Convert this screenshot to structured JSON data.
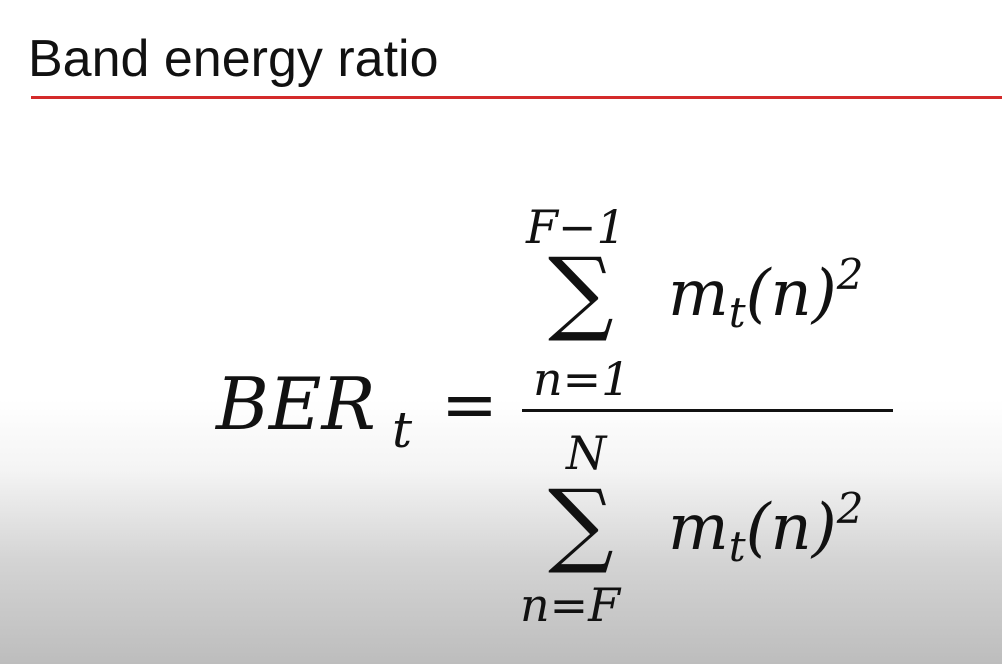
{
  "slide": {
    "title": "Band energy ratio"
  },
  "formula": {
    "lhs": "BER",
    "lhs_subscript": "t",
    "equals": "=",
    "numerator": {
      "operator": "∑",
      "upper_limit": "F−1",
      "lower_limit": "n=1",
      "term_base": "m",
      "term_subscript": "t",
      "term_argument": "(n)",
      "term_exponent": "2"
    },
    "denominator": {
      "operator": "∑",
      "upper_limit": "N",
      "lower_limit": "n=F",
      "term_base": "m",
      "term_subscript": "t",
      "term_argument": "(n)",
      "term_exponent": "2"
    }
  },
  "colors": {
    "title_rule": "#d42a2a",
    "text": "#111111"
  }
}
